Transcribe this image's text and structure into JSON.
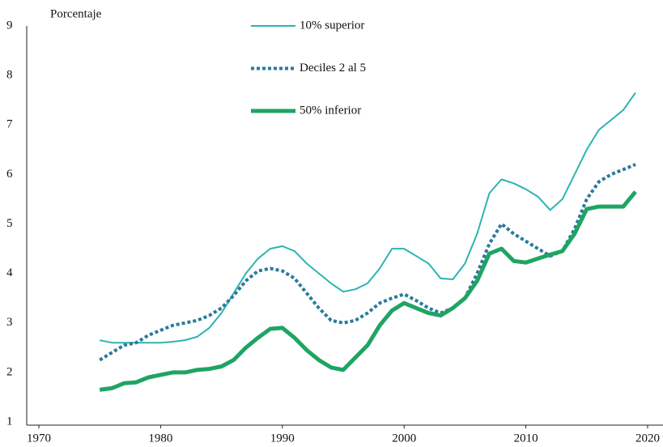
{
  "chart_data": {
    "type": "line",
    "y_label": "Porcentaje",
    "x": [
      1975,
      1976,
      1977,
      1978,
      1979,
      1980,
      1981,
      1982,
      1983,
      1984,
      1985,
      1986,
      1987,
      1988,
      1989,
      1990,
      1991,
      1992,
      1993,
      1994,
      1995,
      1996,
      1997,
      1998,
      1999,
      2000,
      2001,
      2002,
      2003,
      2004,
      2005,
      2006,
      2007,
      2008,
      2009,
      2010,
      2011,
      2012,
      2013,
      2014,
      2015,
      2016,
      2017,
      2018,
      2019
    ],
    "series": [
      {
        "name": "10% superior",
        "color": "#2bb5b0",
        "line_style": "solid",
        "line_width": 2,
        "values": [
          2.65,
          2.6,
          2.6,
          2.6,
          2.6,
          2.6,
          2.62,
          2.65,
          2.72,
          2.9,
          3.2,
          3.6,
          4.0,
          4.3,
          4.5,
          4.55,
          4.45,
          4.2,
          4.0,
          3.8,
          3.63,
          3.68,
          3.8,
          4.1,
          4.5,
          4.5,
          4.35,
          4.2,
          3.9,
          3.88,
          4.2,
          4.8,
          5.62,
          5.9,
          5.82,
          5.7,
          5.55,
          5.28,
          5.5,
          6.0,
          6.5,
          6.9,
          7.1,
          7.3,
          7.65
        ]
      },
      {
        "name": "Deciles 2 al 5",
        "color": "#2a7a9b",
        "line_style": "dotted",
        "line_width": 4,
        "values": [
          2.25,
          2.4,
          2.55,
          2.6,
          2.75,
          2.85,
          2.95,
          3.0,
          3.05,
          3.15,
          3.3,
          3.55,
          3.85,
          4.05,
          4.1,
          4.05,
          3.9,
          3.6,
          3.3,
          3.05,
          3.0,
          3.05,
          3.2,
          3.4,
          3.5,
          3.58,
          3.45,
          3.3,
          3.2,
          3.3,
          3.5,
          4.0,
          4.6,
          5.0,
          4.8,
          4.65,
          4.5,
          4.35,
          4.45,
          4.9,
          5.5,
          5.85,
          6.0,
          6.1,
          6.2
        ]
      },
      {
        "name": "50% inferior",
        "color": "#1fa463",
        "line_style": "solid",
        "line_width": 5,
        "values": [
          1.65,
          1.68,
          1.78,
          1.8,
          1.9,
          1.95,
          2.0,
          2.0,
          2.05,
          2.07,
          2.12,
          2.25,
          2.5,
          2.7,
          2.88,
          2.9,
          2.7,
          2.45,
          2.25,
          2.1,
          2.05,
          2.3,
          2.55,
          2.95,
          3.25,
          3.4,
          3.3,
          3.2,
          3.15,
          3.3,
          3.5,
          3.85,
          4.4,
          4.5,
          4.25,
          4.22,
          4.3,
          4.38,
          4.45,
          4.8,
          5.3,
          5.35,
          5.35,
          5.35,
          5.65
        ]
      }
    ],
    "xlim": [
      1970,
      2020
    ],
    "xticks": [
      1970,
      1980,
      1990,
      2000,
      2010,
      2020
    ],
    "ylim": [
      1,
      9
    ],
    "yticks": [
      1,
      2,
      3,
      4,
      5,
      6,
      7,
      8,
      9
    ],
    "grid": false
  }
}
